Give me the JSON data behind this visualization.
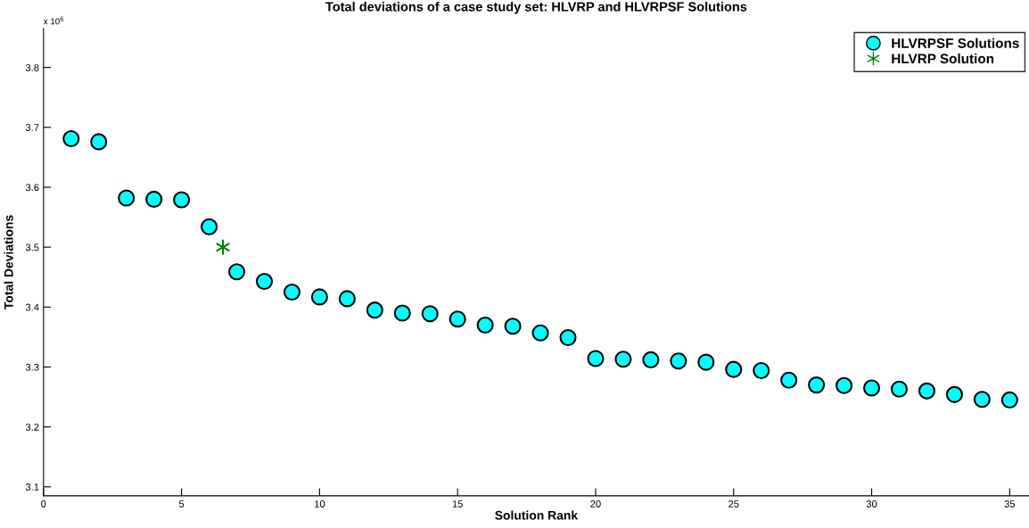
{
  "chart_data": {
    "type": "scatter",
    "title": "Total deviations of a case study set: HLVRP and HLVRPSF Solutions",
    "xlabel": "Solution Rank",
    "ylabel": "Total Deviations",
    "annotations": [
      "x 10$^{6}$"
    ],
    "series": [
      {
        "name": "HLVRPSF Solutions",
        "color": "#00ffff",
        "marker": "circle",
        "x": [
          1,
          2,
          3,
          4,
          5,
          6,
          7,
          8,
          9,
          10,
          11,
          12,
          13,
          14,
          15,
          16,
          17,
          18,
          19,
          20,
          21,
          22,
          23,
          24,
          25,
          26,
          27,
          28,
          29,
          30,
          31,
          32,
          33,
          34,
          35
        ],
        "values": [
          3.681,
          3.676,
          3.582,
          3.58,
          3.579,
          3.534,
          3.459,
          3.443,
          3.425,
          3.417,
          3.414,
          3.395,
          3.39,
          3.389,
          3.38,
          3.37,
          3.368,
          3.357,
          3.349,
          3.314,
          3.313,
          3.312,
          3.31,
          3.308,
          3.296,
          3.294,
          3.278,
          3.27,
          3.269,
          3.265,
          3.263,
          3.26,
          3.254,
          3.246,
          3.245
        ]
      },
      {
        "name": "HLVRP Solution",
        "color": "#008000",
        "marker": "cross",
        "x": [
          6.5
        ],
        "values": [
          3.5
        ]
      }
    ],
    "xlim": [
      0,
      35.7
    ],
    "xticks": [
      0,
      5,
      10,
      15,
      20,
      25,
      30,
      35
    ],
    "ylim": [
      3.085,
      3.865
    ],
    "yticks": [
      3.1,
      3.2,
      3.3,
      3.4,
      3.5,
      3.6,
      3.7,
      3.8
    ],
    "legend": "top right",
    "grid": false
  }
}
